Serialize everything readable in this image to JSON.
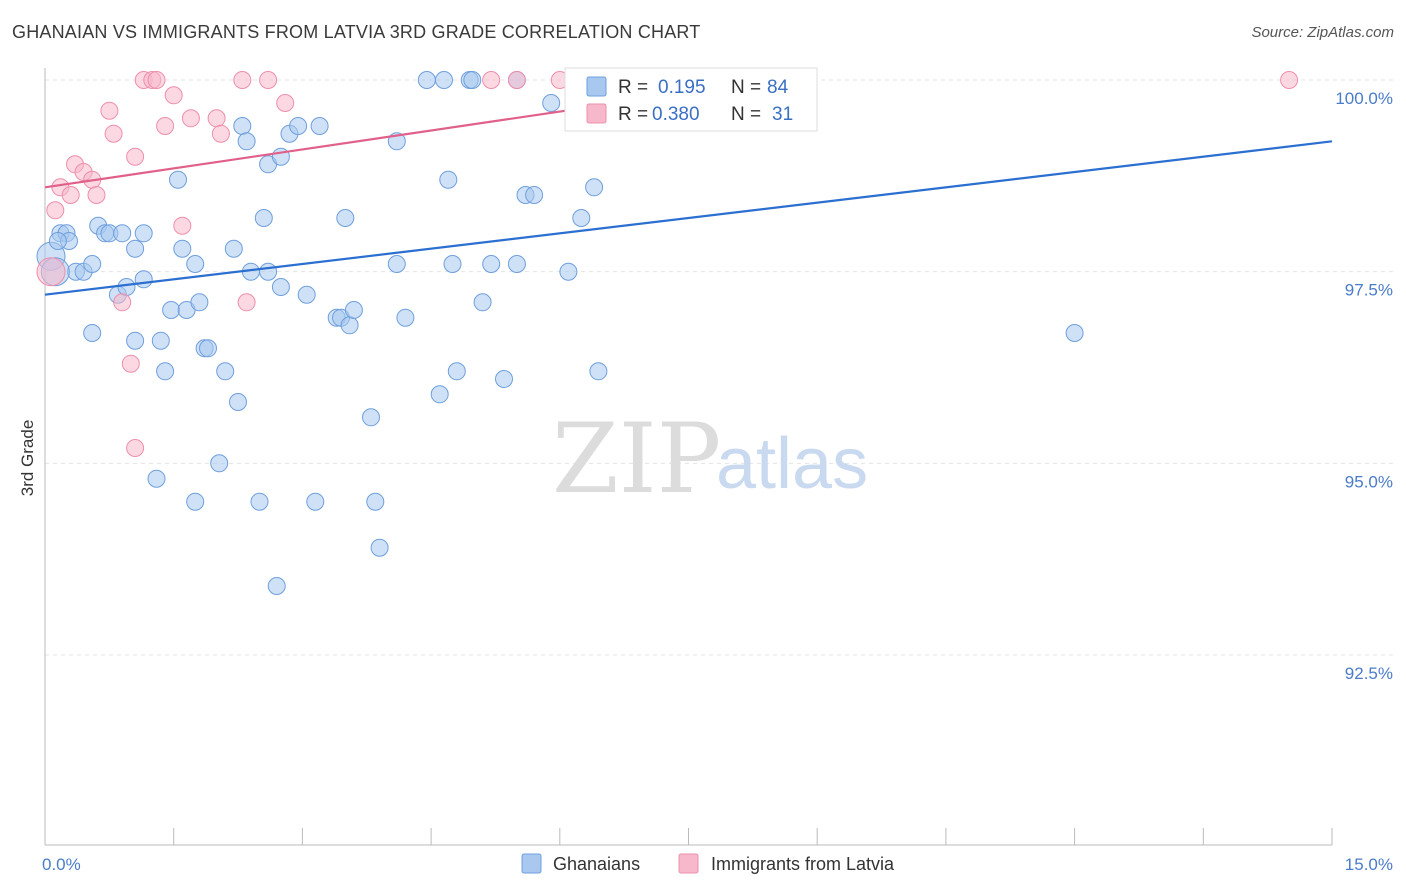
{
  "title": "GHANAIAN VS IMMIGRANTS FROM LATVIA 3RD GRADE CORRELATION CHART",
  "source": "Source: ZipAtlas.com",
  "watermark": {
    "zip": "ZIP",
    "atlas": "atlas"
  },
  "legend_box": {
    "rows": [
      {
        "r_label": "R =",
        "r_value": "0.195",
        "n_label": "N =",
        "n_value": "84",
        "color": "#a8c8f0"
      },
      {
        "r_label": "R =",
        "r_value": "0.380",
        "n_label": "N =",
        "n_value": "31",
        "color": "#f7b8cb"
      }
    ]
  },
  "bottom_legend": [
    {
      "label": "Ghanaians",
      "color": "#a8c8f0"
    },
    {
      "label": "Immigrants from Latvia",
      "color": "#f7b8cb"
    }
  ],
  "chart_data": {
    "type": "scatter",
    "title": "GHANAIAN VS IMMIGRANTS FROM LATVIA 3RD GRADE CORRELATION CHART",
    "xlabel": "",
    "ylabel": "3rd Grade",
    "xlim": [
      0,
      15
    ],
    "ylim": [
      90.5,
      100.2
    ],
    "x_tick_labels": [
      "0.0%",
      "15.0%"
    ],
    "y_ticks": [
      92.5,
      95.0,
      97.5,
      100.0
    ],
    "y_tick_labels": [
      "92.5%",
      "95.0%",
      "97.5%",
      "100.0%"
    ],
    "grid": true,
    "series": [
      {
        "name": "Ghanaians",
        "color": "#a8c8f0",
        "stroke": "#6f9fdc",
        "trend": {
          "x": [
            0,
            15
          ],
          "y": [
            97.2,
            99.2
          ],
          "color": "#2b6fd0"
        },
        "points": [
          [
            0.07,
            97.7
          ],
          [
            0.18,
            98.0
          ],
          [
            0.25,
            98.0
          ],
          [
            0.28,
            97.9
          ],
          [
            0.36,
            97.5
          ],
          [
            0.45,
            97.5
          ],
          [
            0.55,
            97.6
          ],
          [
            0.62,
            98.1
          ],
          [
            0.7,
            98.0
          ],
          [
            0.75,
            98.0
          ],
          [
            0.85,
            97.2
          ],
          [
            0.95,
            97.3
          ],
          [
            0.9,
            98.0
          ],
          [
            1.05,
            97.8
          ],
          [
            1.15,
            98.0
          ],
          [
            1.05,
            96.6
          ],
          [
            1.15,
            97.4
          ],
          [
            1.35,
            96.6
          ],
          [
            1.4,
            96.2
          ],
          [
            1.47,
            97.0
          ],
          [
            1.55,
            98.7
          ],
          [
            1.6,
            97.8
          ],
          [
            1.65,
            97.0
          ],
          [
            1.75,
            97.6
          ],
          [
            1.8,
            97.1
          ],
          [
            1.86,
            96.5
          ],
          [
            1.9,
            96.5
          ],
          [
            2.03,
            95.0
          ],
          [
            2.1,
            96.2
          ],
          [
            2.2,
            97.8
          ],
          [
            2.25,
            95.8
          ],
          [
            2.3,
            99.4
          ],
          [
            2.35,
            99.2
          ],
          [
            2.4,
            97.5
          ],
          [
            2.55,
            98.2
          ],
          [
            2.6,
            97.5
          ],
          [
            2.6,
            98.9
          ],
          [
            2.75,
            97.3
          ],
          [
            2.75,
            99.0
          ],
          [
            2.85,
            99.3
          ],
          [
            2.95,
            99.4
          ],
          [
            3.05,
            97.2
          ],
          [
            3.2,
            99.4
          ],
          [
            3.4,
            96.9
          ],
          [
            3.45,
            96.9
          ],
          [
            3.5,
            98.2
          ],
          [
            3.55,
            96.8
          ],
          [
            3.6,
            97.0
          ],
          [
            3.8,
            95.6
          ],
          [
            3.85,
            94.5
          ],
          [
            3.9,
            93.9
          ],
          [
            4.1,
            99.2
          ],
          [
            4.1,
            97.6
          ],
          [
            4.2,
            96.9
          ],
          [
            4.45,
            100.0
          ],
          [
            4.6,
            95.9
          ],
          [
            4.65,
            100.0
          ],
          [
            4.7,
            98.7
          ],
          [
            4.75,
            97.6
          ],
          [
            4.8,
            96.2
          ],
          [
            4.95,
            100.0
          ],
          [
            4.98,
            100.0
          ],
          [
            5.1,
            97.1
          ],
          [
            5.2,
            97.6
          ],
          [
            5.35,
            96.1
          ],
          [
            5.5,
            100.0
          ],
          [
            5.5,
            97.6
          ],
          [
            5.6,
            98.5
          ],
          [
            5.7,
            98.5
          ],
          [
            5.9,
            99.7
          ],
          [
            6.1,
            97.5
          ],
          [
            6.25,
            98.2
          ],
          [
            6.4,
            98.6
          ],
          [
            6.45,
            96.2
          ],
          [
            2.7,
            93.4
          ],
          [
            1.75,
            94.5
          ],
          [
            1.3,
            94.8
          ],
          [
            3.15,
            94.5
          ],
          [
            2.5,
            94.5
          ],
          [
            0.55,
            96.7
          ],
          [
            6.9,
            100.0
          ],
          [
            12.0,
            96.7
          ],
          [
            0.12,
            97.5
          ],
          [
            0.15,
            97.9
          ]
        ]
      },
      {
        "name": "Immigrants from Latvia",
        "color": "#f7b8cb",
        "stroke": "#ee8fab",
        "trend": {
          "x": [
            0,
            8.5
          ],
          "y": [
            98.6,
            100.0
          ],
          "color": "#e0608a"
        },
        "points": [
          [
            0.07,
            97.5
          ],
          [
            0.12,
            98.3
          ],
          [
            0.18,
            98.6
          ],
          [
            0.3,
            98.5
          ],
          [
            0.35,
            98.9
          ],
          [
            0.45,
            98.8
          ],
          [
            0.55,
            98.7
          ],
          [
            0.6,
            98.5
          ],
          [
            0.75,
            99.6
          ],
          [
            0.8,
            99.3
          ],
          [
            0.9,
            97.1
          ],
          [
            1.0,
            96.3
          ],
          [
            1.05,
            95.2
          ],
          [
            1.05,
            99.0
          ],
          [
            1.15,
            100.0
          ],
          [
            1.25,
            100.0
          ],
          [
            1.3,
            100.0
          ],
          [
            1.4,
            99.4
          ],
          [
            1.5,
            99.8
          ],
          [
            1.6,
            98.1
          ],
          [
            1.7,
            99.5
          ],
          [
            2.0,
            99.5
          ],
          [
            2.05,
            99.3
          ],
          [
            2.3,
            100.0
          ],
          [
            2.35,
            97.1
          ],
          [
            2.6,
            100.0
          ],
          [
            2.8,
            99.7
          ],
          [
            5.2,
            100.0
          ],
          [
            5.5,
            100.0
          ],
          [
            6.0,
            100.0
          ],
          [
            14.5,
            100.0
          ]
        ]
      }
    ]
  }
}
